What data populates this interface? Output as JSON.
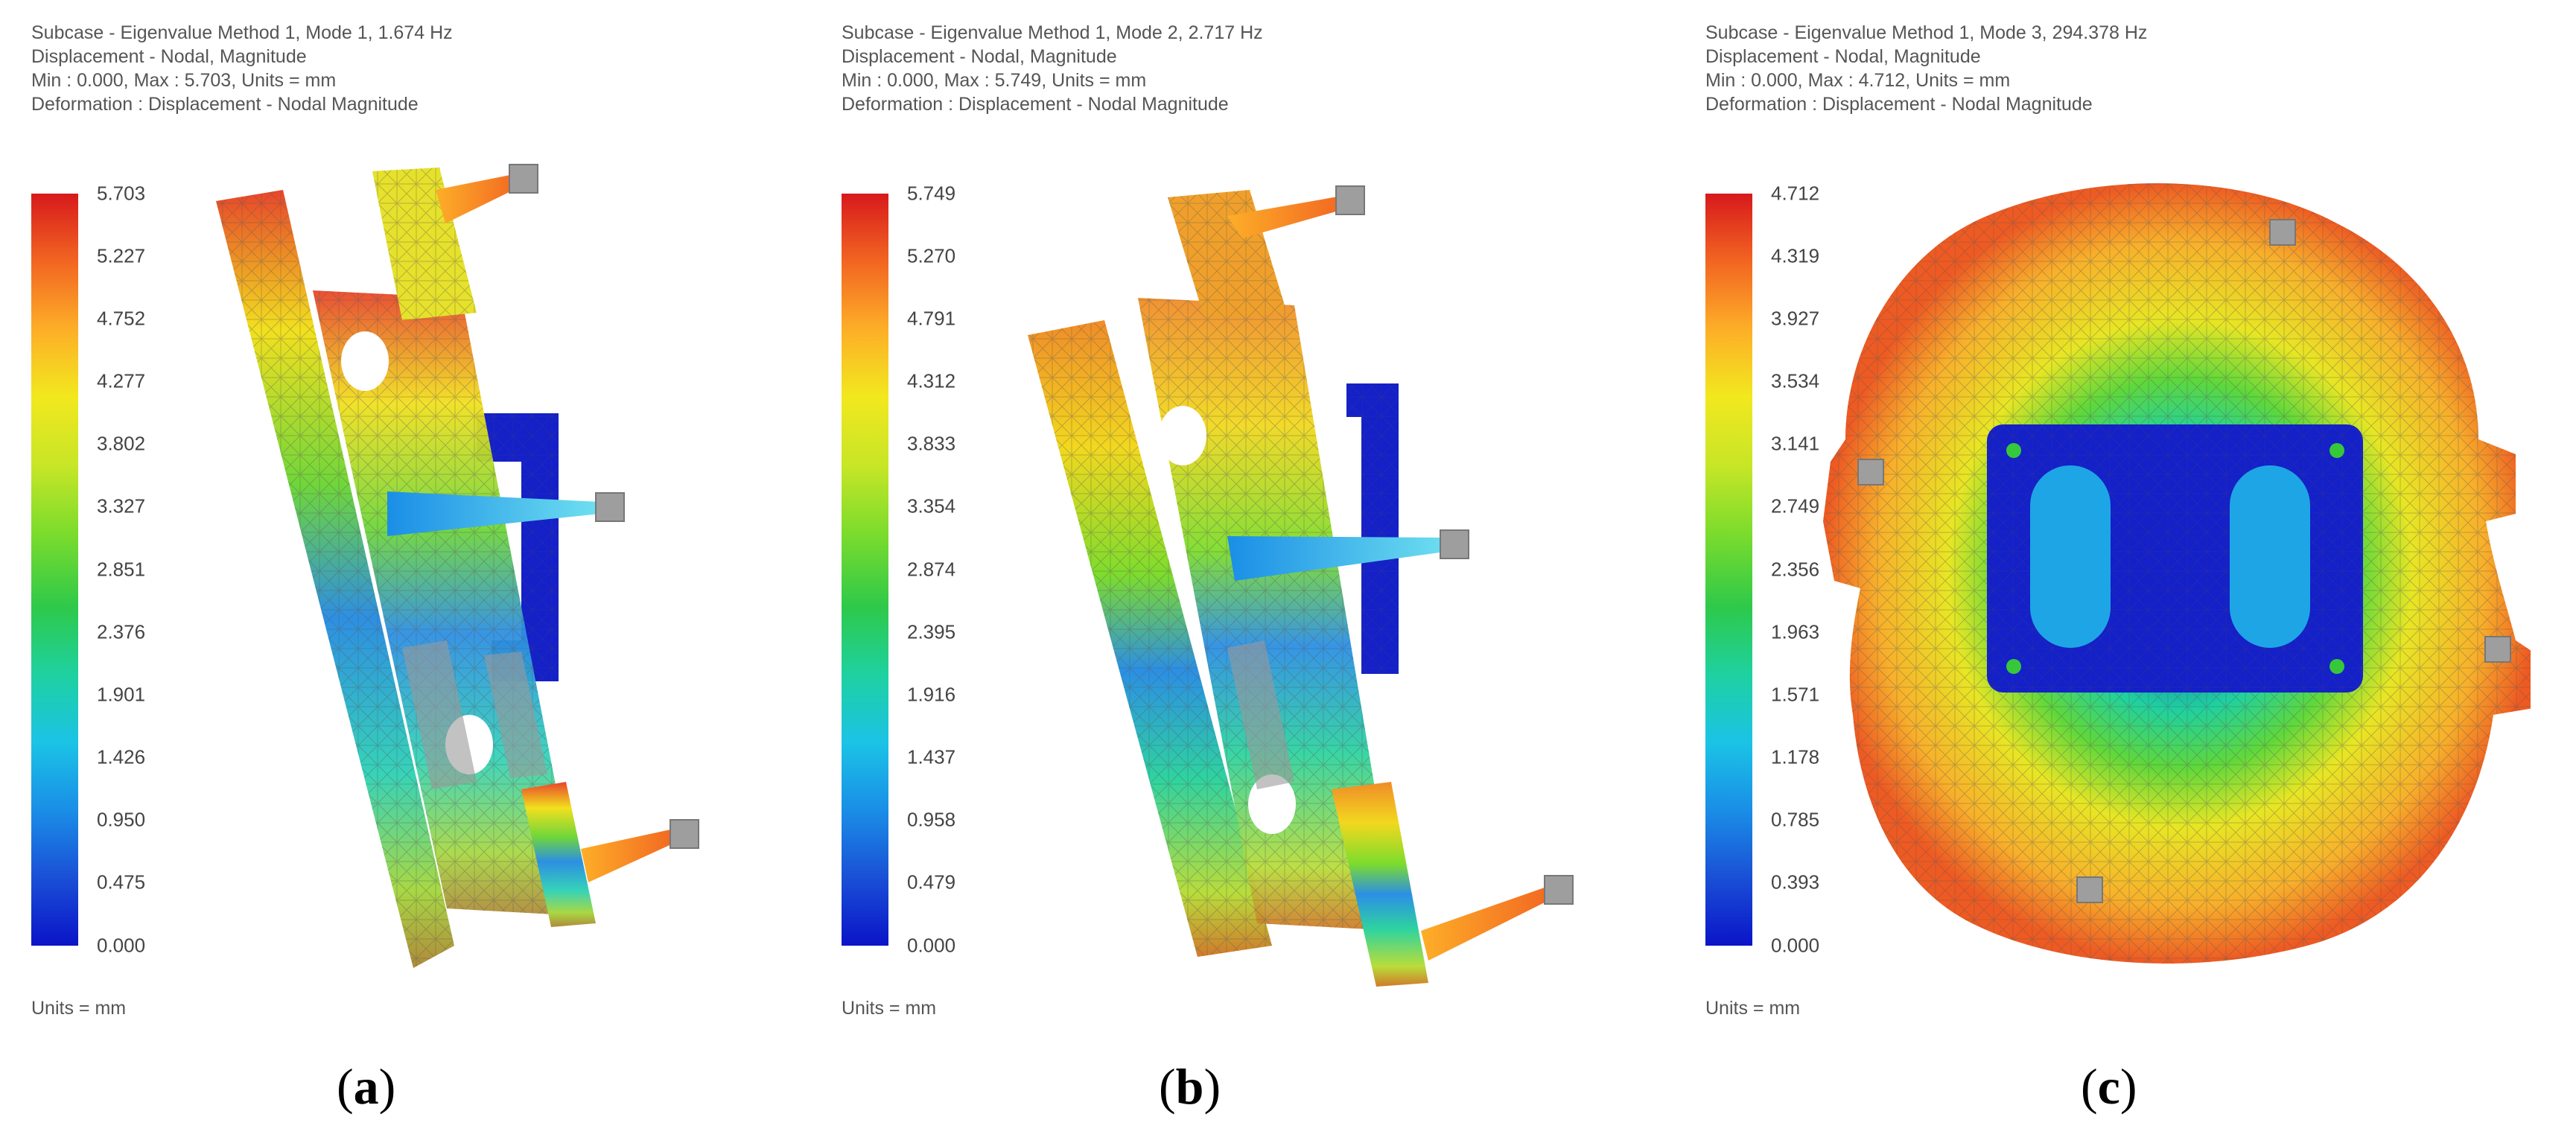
{
  "panels": [
    {
      "header": [
        "Subcase - Eigenvalue Method 1, Mode 1, 1.674 Hz",
        "Displacement - Nodal, Magnitude",
        "Min : 0.000, Max : 5.703, Units = mm",
        "Deformation : Displacement - Nodal Magnitude"
      ],
      "ticks": [
        "5.703",
        "5.227",
        "4.752",
        "4.277",
        "3.802",
        "3.327",
        "2.851",
        "2.376",
        "1.901",
        "1.426",
        "0.950",
        "0.475",
        "0.000"
      ],
      "units": "Units = mm",
      "caption_letter": "a"
    },
    {
      "header": [
        "Subcase - Eigenvalue Method 1, Mode 2, 2.717 Hz",
        "Displacement - Nodal, Magnitude",
        "Min : 0.000, Max : 5.749, Units = mm",
        "Deformation : Displacement - Nodal Magnitude"
      ],
      "ticks": [
        "5.749",
        "5.270",
        "4.791",
        "4.312",
        "3.833",
        "3.354",
        "2.874",
        "2.395",
        "1.916",
        "1.437",
        "0.958",
        "0.479",
        "0.000"
      ],
      "units": "Units = mm",
      "caption_letter": "b"
    },
    {
      "header": [
        "Subcase - Eigenvalue Method 1, Mode 3, 294.378 Hz",
        "Displacement - Nodal, Magnitude",
        "Min : 0.000, Max : 4.712, Units = mm",
        "Deformation : Displacement - Nodal Magnitude"
      ],
      "ticks": [
        "4.712",
        "4.319",
        "3.927",
        "3.534",
        "3.141",
        "2.749",
        "2.356",
        "1.963",
        "1.571",
        "1.178",
        "0.785",
        "0.393",
        "0.000"
      ],
      "units": "Units = mm",
      "caption_letter": "c"
    }
  ],
  "caption_parens": [
    "(",
    ")"
  ],
  "colormap": [
    "#d7191c",
    "#f26522",
    "#fdae28",
    "#f2e81e",
    "#c8e627",
    "#7ddc2c",
    "#2ec94a",
    "#1ed1a0",
    "#1bc3e6",
    "#1a8ee6",
    "#1a4fd6",
    "#0a14c8"
  ]
}
